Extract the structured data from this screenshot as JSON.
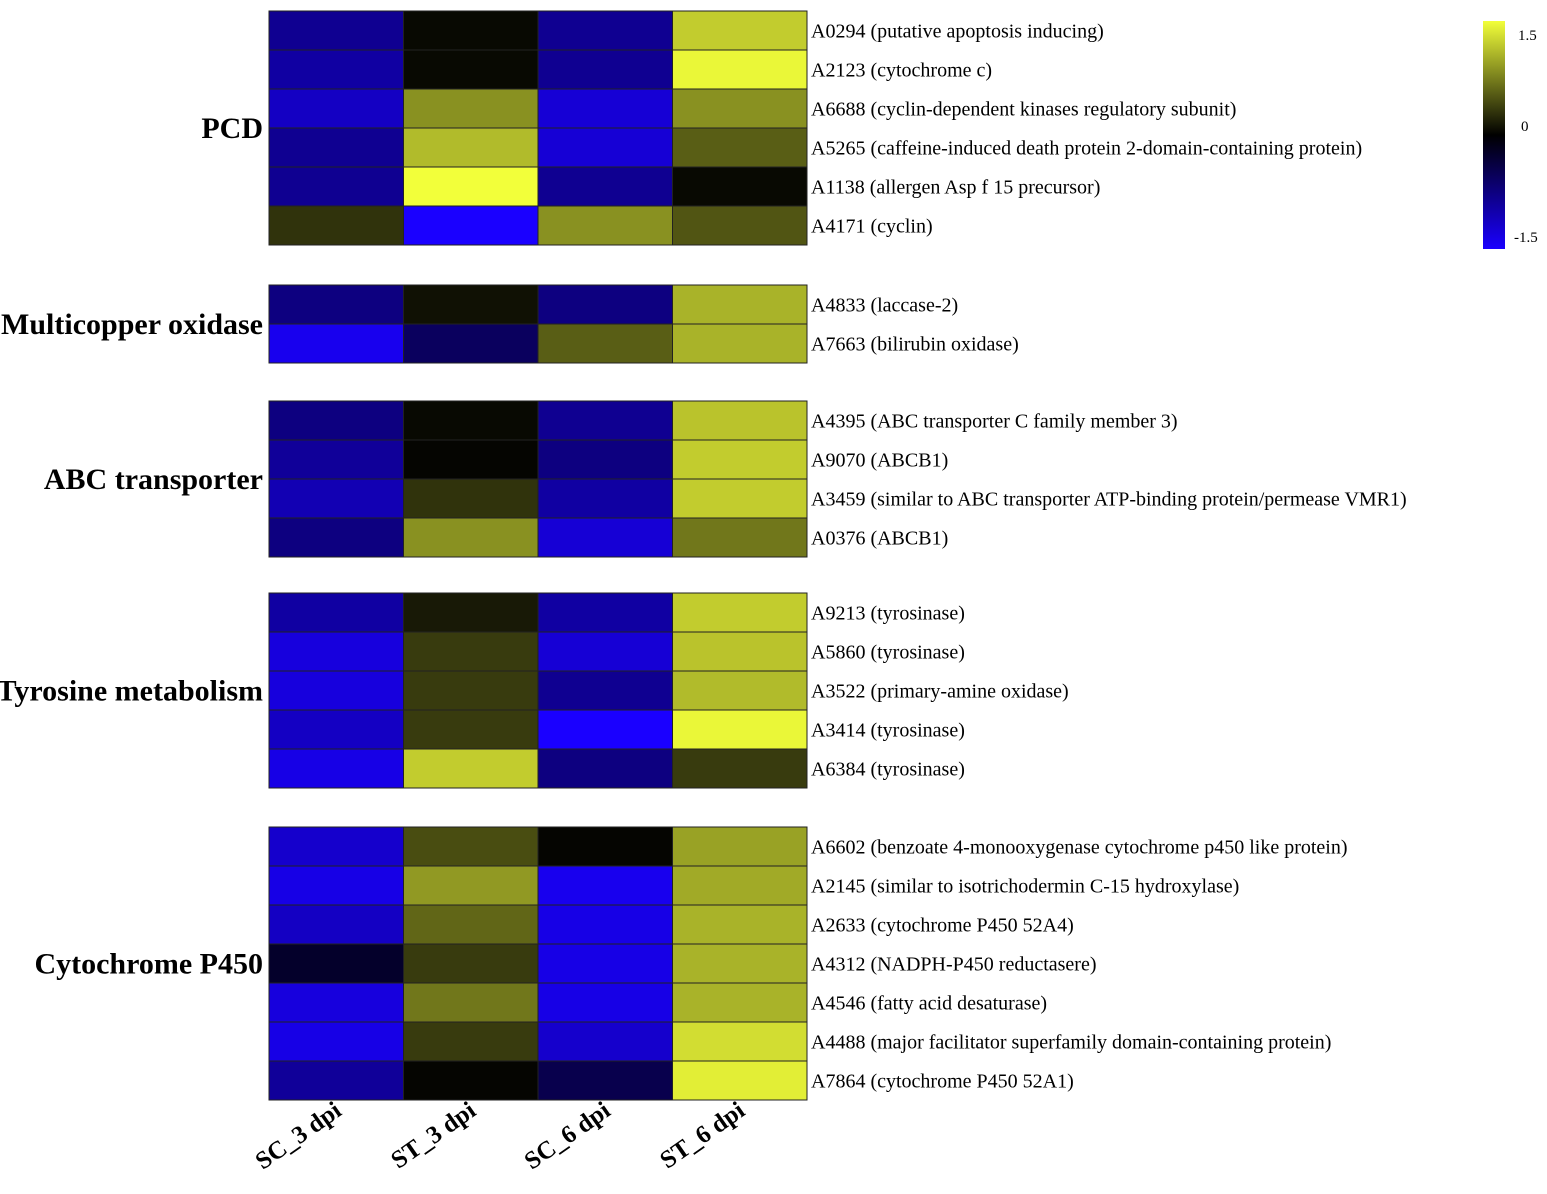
{
  "chart_data": {
    "type": "heatmap",
    "title": "",
    "columns": [
      "SC_3 dpi",
      "ST_3 dpi",
      "SC_6 dpi",
      "ST_6 dpi"
    ],
    "color_scale": {
      "min": -1.5,
      "mid": 0,
      "max": 1.5,
      "low_color": "#1a00ff",
      "mid_color": "#000000",
      "high_color": "#f2ff3a",
      "tick_labels": [
        "1.5",
        "0",
        "-1.5"
      ]
    },
    "groups": [
      {
        "name": "PCD",
        "rows": [
          {
            "gene": "A0294 (putative apoptosis inducing)",
            "values": [
              -0.85,
              0.05,
              -0.85,
              1.2
            ]
          },
          {
            "gene": "A2123 (cytochrome c)",
            "values": [
              -0.95,
              0.05,
              -0.85,
              1.45
            ]
          },
          {
            "gene": "A6688 (cyclin-dependent kinases regulatory subunit)",
            "values": [
              -1.15,
              0.85,
              -1.25,
              0.85
            ]
          },
          {
            "gene": "A5265 (caffeine-induced death protein 2-domain-containing protein)",
            "values": [
              -0.85,
              1.1,
              -1.25,
              0.55
            ]
          },
          {
            "gene": "A1138 (allergen Asp f 15 precursor)",
            "values": [
              -0.85,
              1.5,
              -0.85,
              0.05
            ]
          },
          {
            "gene": "A4171 (cyclin)",
            "values": [
              0.3,
              -1.5,
              0.85,
              0.5
            ]
          }
        ]
      },
      {
        "name": "Multicopper oxidase",
        "rows": [
          {
            "gene": "A4833 (laccase-2)",
            "values": [
              -0.75,
              0.1,
              -0.75,
              1.05
            ]
          },
          {
            "gene": "A7663 (bilirubin oxidase)",
            "values": [
              -1.4,
              -0.55,
              0.55,
              1.05
            ]
          }
        ]
      },
      {
        "name": "ABC transporter",
        "rows": [
          {
            "gene": "A4395 (ABC transporter C family member 3)",
            "values": [
              -0.75,
              0.05,
              -0.85,
              1.15
            ]
          },
          {
            "gene": "A9070 (ABCB1)",
            "values": [
              -0.9,
              0.03,
              -0.75,
              1.2
            ]
          },
          {
            "gene": "A3459 (similar to ABC transporter ATP-binding protein/permease VMR1)",
            "values": [
              -1.05,
              0.3,
              -0.95,
              1.2
            ]
          },
          {
            "gene": "A0376 (ABCB1)",
            "values": [
              -0.75,
              0.85,
              -1.25,
              0.7
            ]
          }
        ]
      },
      {
        "name": "Tyrosine metabolism",
        "rows": [
          {
            "gene": "A9213 (tyrosinase)",
            "values": [
              -0.95,
              0.15,
              -0.95,
              1.2
            ]
          },
          {
            "gene": "A5860 (tyrosinase)",
            "values": [
              -1.3,
              0.35,
              -1.25,
              1.15
            ]
          },
          {
            "gene": "A3522 (primary-amine oxidase)",
            "values": [
              -1.3,
              0.35,
              -0.85,
              1.1
            ]
          },
          {
            "gene": "A3414 (tyrosinase)",
            "values": [
              -1.15,
              0.35,
              -1.5,
              1.45
            ]
          },
          {
            "gene": "A6384 (tyrosinase)",
            "values": [
              -1.35,
              1.2,
              -0.75,
              0.35
            ]
          }
        ]
      },
      {
        "name": "Cytochrome P450",
        "rows": [
          {
            "gene": "A6602 (benzoate 4-monooxygenase cytochrome p450 like protein)",
            "values": [
              -1.2,
              0.45,
              0.03,
              0.95
            ]
          },
          {
            "gene": "A2145 (similar to isotrichodermin C-15 hydroxylase)",
            "values": [
              -1.35,
              0.9,
              -1.4,
              1.0
            ]
          },
          {
            "gene": "A2633 (cytochrome P450 52A4)",
            "values": [
              -1.15,
              0.6,
              -1.35,
              1.05
            ]
          },
          {
            "gene": "A4312 (NADPH-P450 reductasere)",
            "values": [
              -0.25,
              0.35,
              -1.35,
              1.05
            ]
          },
          {
            "gene": "A4546 (fatty acid desaturase)",
            "values": [
              -1.3,
              0.7,
              -1.35,
              1.05
            ]
          },
          {
            "gene": "A4488 (major facilitator superfamily domain-containing protein)",
            "values": [
              -1.35,
              0.35,
              -1.2,
              1.3
            ]
          },
          {
            "gene": "A7864 (cytochrome P450 52A1)",
            "values": [
              -0.9,
              0.03,
              -0.45,
              1.4
            ]
          }
        ]
      }
    ]
  }
}
